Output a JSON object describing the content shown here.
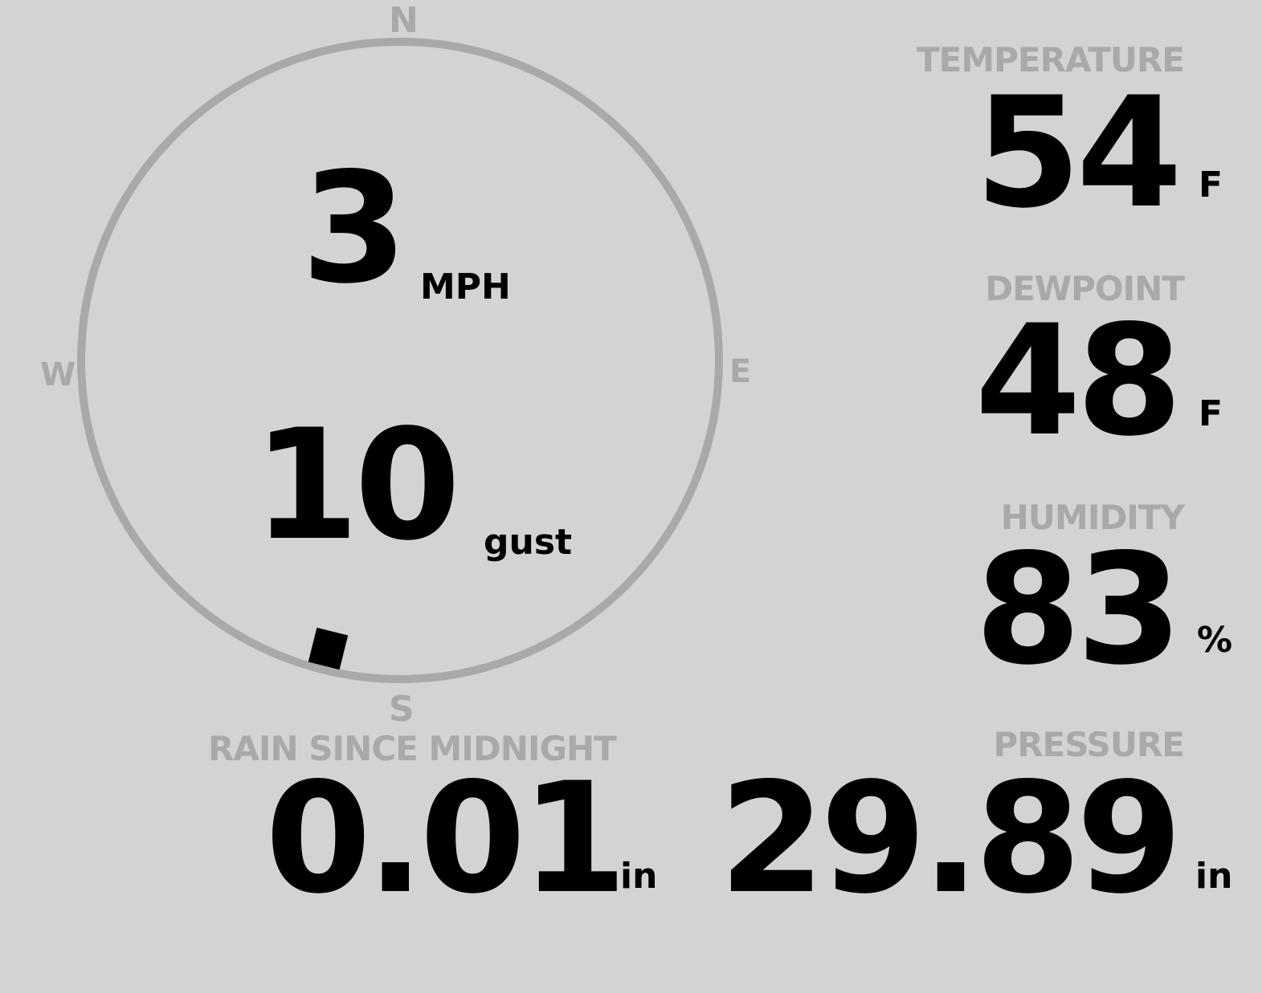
{
  "wind": {
    "speed": "3",
    "speed_unit": "MPH",
    "gust": "10",
    "gust_label": "gust",
    "direction_deg": 194,
    "compass": {
      "n": "N",
      "e": "E",
      "s": "S",
      "w": "W"
    }
  },
  "temperature": {
    "label": "TEMPERATURE",
    "value": "54",
    "unit": "F"
  },
  "dewpoint": {
    "label": "DEWPOINT",
    "value": "48",
    "unit": "F"
  },
  "humidity": {
    "label": "HUMIDITY",
    "value": "83",
    "unit": "%"
  },
  "rain": {
    "label": "RAIN SINCE MIDNIGHT",
    "value": "0.01",
    "unit": "in"
  },
  "pressure": {
    "label": "PRESSURE",
    "value": "29.89",
    "unit": "in"
  },
  "colors": {
    "background": "#d3d3d3",
    "label": "#a9a9a9",
    "value": "#000000"
  }
}
